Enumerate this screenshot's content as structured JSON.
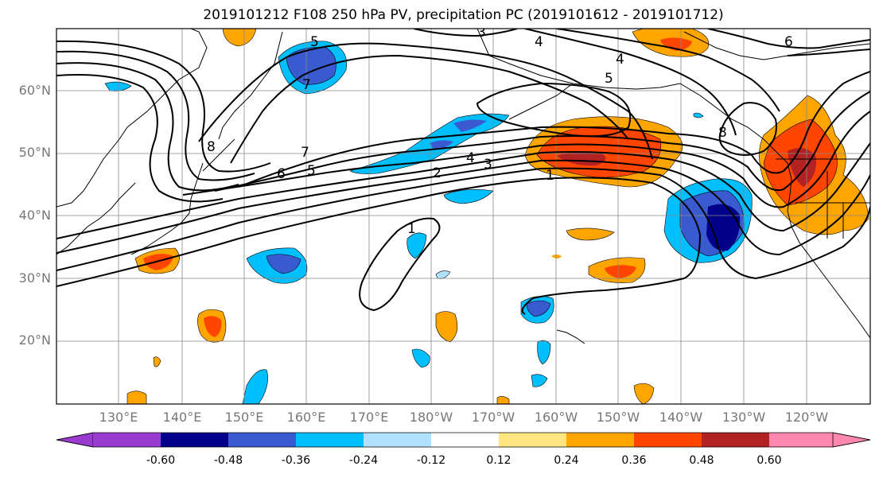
{
  "title": "2019101212 F108 250 hPa PV, precipitation PC (2019101612 - 2019101712)",
  "lat_labels": [
    "60°N",
    "50°N",
    "40°N",
    "30°N",
    "20°N"
  ],
  "lon_labels": [
    "130°E",
    "140°E",
    "150°E",
    "160°E",
    "170°E",
    "180°W",
    "170°W",
    "160°W",
    "150°W",
    "140°W",
    "130°W",
    "120°W"
  ],
  "colorbar": {
    "ticks": [
      "-0.60",
      "-0.48",
      "-0.36",
      "-0.24",
      "-0.12",
      "0.12",
      "0.24",
      "0.36",
      "0.48",
      "0.60"
    ],
    "colors": [
      "#9a3bd0",
      "#00008b",
      "#3a5bd0",
      "#00bfff",
      "#b0e2ff",
      "#ffffff",
      "#ffe680",
      "#ffa500",
      "#ff4500",
      "#b22222",
      "#ff88b0"
    ]
  },
  "contour_labels": [
    "1",
    "2",
    "3",
    "4",
    "5",
    "6",
    "7",
    "8"
  ]
}
